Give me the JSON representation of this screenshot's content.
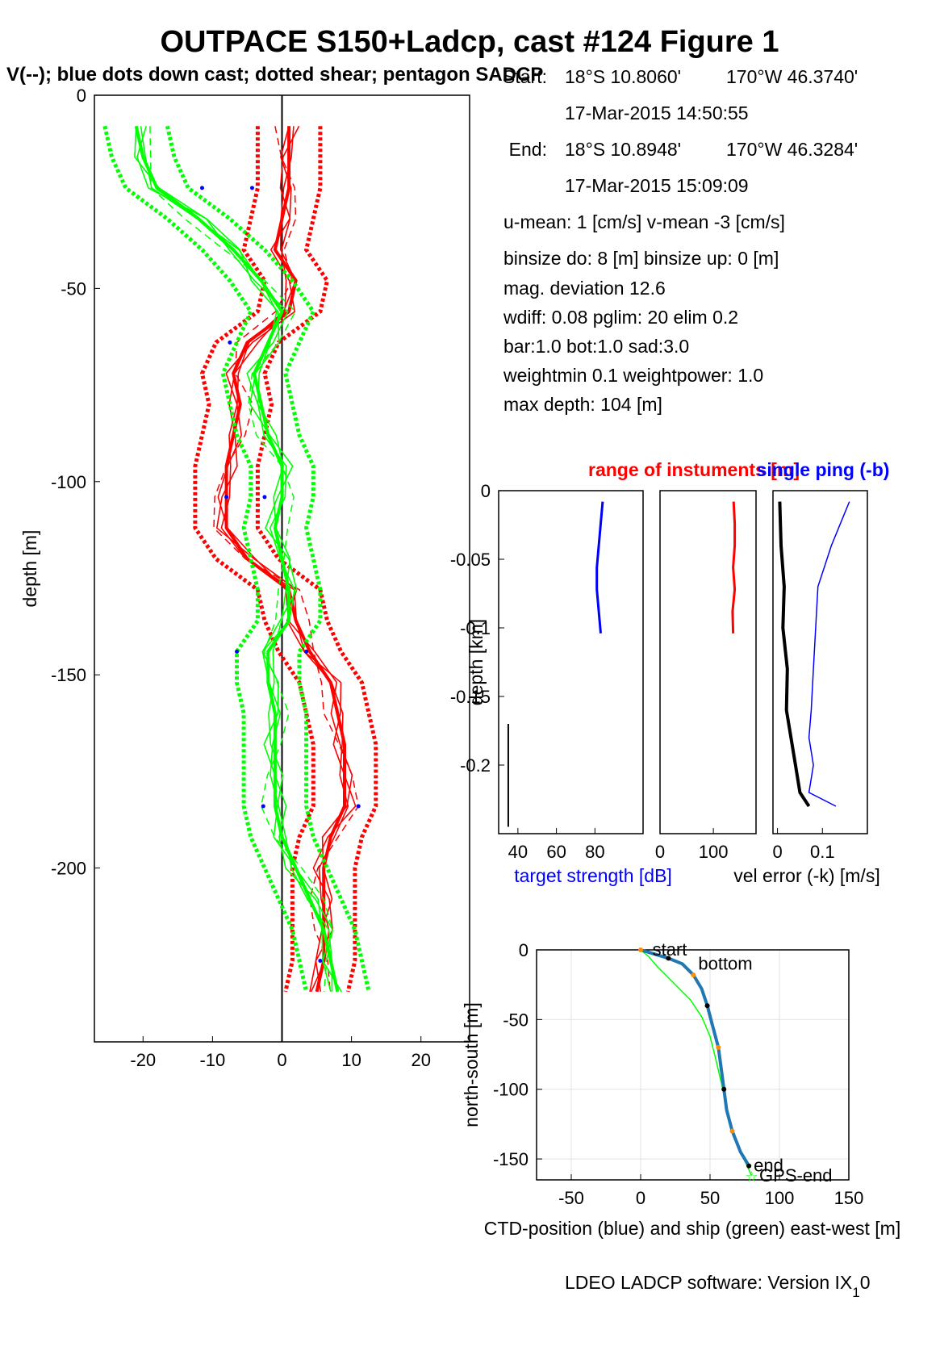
{
  "title": "OUTPACE S150+Ladcp, cast #124  Figure 1",
  "subtitle": "V(--); blue dots down cast; dotted shear; pentagon SADCP",
  "info": {
    "start_label": "Start:",
    "start_lat": "18°S 10.8060'",
    "start_lon": "170°W 46.3740'",
    "start_time": "17-Mar-2015 14:50:55",
    "end_label": "End:",
    "end_lat": "18°S 10.8948'",
    "end_lon": "170°W 46.3284'",
    "end_time": "17-Mar-2015 15:09:09",
    "means": "u-mean:   1 [cm/s]    v-mean  -3 [cm/s]",
    "binsize": "binsize do: 8 [m]  binsize up:  0 [m]",
    "magdev": "mag. deviation 12.6",
    "wdiff": "wdiff: 0.08  pglim: 20  elim 0.2",
    "weights": "  bar:1.0 bot:1.0 sad:3.0",
    "weightmin": "weightmin 0.1  weightpower: 1.0",
    "maxdepth": "max depth: 104 [m]"
  },
  "footer": "LDEO LADCP software: Version IX",
  "footer_sub": "1",
  "footer_tail": "0",
  "colors": {
    "u": "#ff0000",
    "v": "#00ff00",
    "blue": "#0000ff",
    "track": "#1f77b4",
    "black": "#000000"
  },
  "chart_data": [
    {
      "id": "velocity_profile",
      "type": "line",
      "ylabel": "depth [m]",
      "xlim": [
        -27,
        27
      ],
      "ylim": [
        -245,
        0
      ],
      "xticks": [
        -20,
        -10,
        0,
        10,
        20
      ],
      "yticks": [
        0,
        -50,
        -100,
        -150,
        -200
      ],
      "xtick_labels": [
        "-20",
        "-10",
        "0",
        "10",
        "20"
      ],
      "ytick_labels": [
        "0",
        "-50",
        "-100",
        "-150",
        "-200"
      ],
      "depth": [
        -8,
        -16,
        -24,
        -32,
        -40,
        -48,
        -56,
        -64,
        -72,
        -80,
        -88,
        -96,
        -104,
        -112,
        -120,
        -128,
        -136,
        -144,
        -152,
        -160,
        -168,
        -176,
        -184,
        -192,
        -200,
        -208,
        -216,
        -224,
        -232
      ],
      "series": [
        {
          "component": "u",
          "values": [
            1,
            1,
            1,
            0,
            -1,
            2,
            1,
            -5,
            -7,
            -6,
            -7,
            -8,
            -8,
            -8,
            -5,
            1,
            2,
            4,
            7,
            8,
            9,
            9,
            9,
            7,
            6,
            6,
            6,
            6,
            5
          ]
        },
        {
          "component": "v",
          "values": [
            -21,
            -20,
            -18,
            -12,
            -7,
            -3,
            0,
            -2,
            -4,
            -3,
            -2,
            0,
            0,
            -1,
            0,
            1,
            1,
            -2,
            -2,
            -1,
            -1,
            -1,
            -1,
            0,
            2,
            4,
            6,
            7,
            8
          ]
        }
      ],
      "blue_dots": [
        [
          -11.5,
          -24
        ],
        [
          -4.3,
          -24
        ],
        [
          -7.5,
          -64
        ],
        [
          -8,
          -104
        ],
        [
          -2.5,
          -104
        ],
        [
          -6.5,
          -144
        ],
        [
          3.5,
          -144
        ],
        [
          -2.7,
          -184
        ],
        [
          11,
          -184
        ],
        [
          5.5,
          -224
        ]
      ]
    },
    {
      "id": "target_strength",
      "type": "line",
      "xlabel": "target strength [dB]",
      "xticks": [
        40,
        60,
        80
      ],
      "xtick_labels": [
        "40",
        "60",
        "80"
      ],
      "xlim": [
        30,
        105
      ],
      "ylim": [
        -0.25,
        0
      ],
      "ylabel": "depth [km]",
      "yticks": [
        0,
        -0.05,
        -0.1,
        -0.15,
        -0.2
      ],
      "ytick_labels": [
        "0",
        "-0.05",
        "-0.1",
        "-0.15",
        "-0.2"
      ],
      "depth_km": [
        -0.008,
        -0.024,
        -0.04,
        -0.056,
        -0.072,
        -0.088,
        -0.104
      ],
      "values": [
        84,
        83,
        82,
        81,
        81,
        82,
        83
      ]
    },
    {
      "id": "instrument_range",
      "type": "line",
      "title": "range of instuments [m]",
      "xticks": [
        0,
        100
      ],
      "xtick_labels": [
        "0",
        "100"
      ],
      "xlim": [
        0,
        180
      ],
      "ylim": [
        -0.25,
        0
      ],
      "depth_km": [
        -0.008,
        -0.024,
        -0.04,
        -0.056,
        -0.072,
        -0.088,
        -0.104
      ],
      "values": [
        138,
        140,
        140,
        137,
        140,
        136,
        137
      ]
    },
    {
      "id": "velocity_error",
      "type": "line",
      "title": "single ping (-b)",
      "xlabel": "vel error (-k) [m/s]",
      "xticks": [
        0,
        0.1
      ],
      "xtick_labels": [
        "0",
        "0.1"
      ],
      "xlim": [
        -0.01,
        0.2
      ],
      "ylim": [
        -0.25,
        0
      ],
      "depth_km": [
        -0.008,
        -0.04,
        -0.07,
        -0.1,
        -0.13,
        -0.16,
        -0.18,
        -0.2,
        -0.22,
        -0.23
      ],
      "series": [
        {
          "component": "k",
          "values": [
            0.005,
            0.008,
            0.015,
            0.012,
            0.022,
            0.02,
            0.03,
            0.04,
            0.05,
            0.07
          ]
        },
        {
          "component": "b",
          "values": [
            0.16,
            0.12,
            0.09,
            0.085,
            0.08,
            0.075,
            0.07,
            0.08,
            0.07,
            0.13
          ]
        }
      ]
    },
    {
      "id": "position_track",
      "type": "line",
      "xlabel": "CTD-position (blue) and ship (green) east-west [m]",
      "ylabel": "north-south [m]",
      "xlim": [
        -75,
        150
      ],
      "ylim": [
        -165,
        0
      ],
      "xticks": [
        -50,
        0,
        50,
        100,
        150
      ],
      "yticks": [
        0,
        -50,
        -100,
        -150
      ],
      "xtick_labels": [
        "-50",
        "0",
        "50",
        "100",
        "150"
      ],
      "ytick_labels": [
        "0",
        "-50",
        "-100",
        "-150"
      ],
      "labels": [
        {
          "text": "start",
          "x": 5,
          "y": 0
        },
        {
          "text": "bottom",
          "x": 38,
          "y": -10
        },
        {
          "text": "end",
          "x": 78,
          "y": -155
        },
        {
          "text": "GPS-end",
          "x": 82,
          "y": -162
        }
      ],
      "ctd": [
        [
          0,
          0
        ],
        [
          10,
          -3
        ],
        [
          20,
          -6
        ],
        [
          30,
          -10
        ],
        [
          38,
          -18
        ],
        [
          44,
          -28
        ],
        [
          48,
          -40
        ],
        [
          52,
          -55
        ],
        [
          56,
          -70
        ],
        [
          58,
          -85
        ],
        [
          60,
          -100
        ],
        [
          62,
          -115
        ],
        [
          66,
          -130
        ],
        [
          72,
          -145
        ],
        [
          78,
          -155
        ]
      ],
      "ship": [
        [
          0,
          0
        ],
        [
          6,
          -5
        ],
        [
          12,
          -12
        ],
        [
          20,
          -20
        ],
        [
          28,
          -28
        ],
        [
          36,
          -36
        ],
        [
          44,
          -48
        ],
        [
          50,
          -62
        ],
        [
          54,
          -78
        ],
        [
          58,
          -95
        ],
        [
          62,
          -112
        ],
        [
          66,
          -128
        ],
        [
          72,
          -145
        ],
        [
          80,
          -162
        ]
      ]
    }
  ]
}
